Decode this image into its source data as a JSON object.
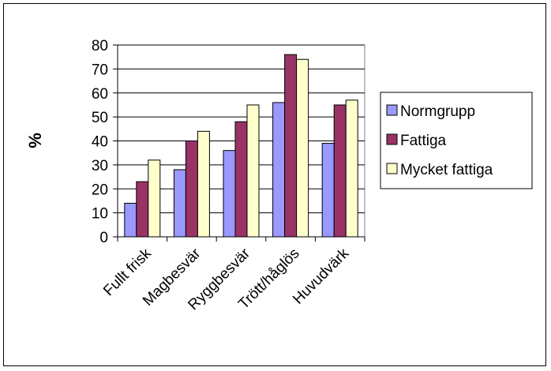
{
  "chart_data": {
    "type": "bar",
    "title": "",
    "xlabel": "",
    "ylabel": "%",
    "ylim": [
      0,
      80
    ],
    "yticks": [
      "0",
      "10",
      "20",
      "30",
      "40",
      "50",
      "60",
      "70",
      "80"
    ],
    "grid": true,
    "legend_position": "right",
    "categories": [
      "Fullt frisk",
      "Magbesvär",
      "Ryggbesvär",
      "Trött/håglös",
      "Huvudvärk"
    ],
    "series": [
      {
        "name": "Normgrupp",
        "color": "#9999FF",
        "values": [
          14,
          28,
          36,
          56,
          39
        ]
      },
      {
        "name": "Fattiga",
        "color": "#993366",
        "values": [
          23,
          40,
          48,
          76,
          55
        ]
      },
      {
        "name": "Mycket fattiga",
        "color": "#FFFFCC",
        "values": [
          32,
          44,
          55,
          74,
          57
        ]
      }
    ]
  }
}
